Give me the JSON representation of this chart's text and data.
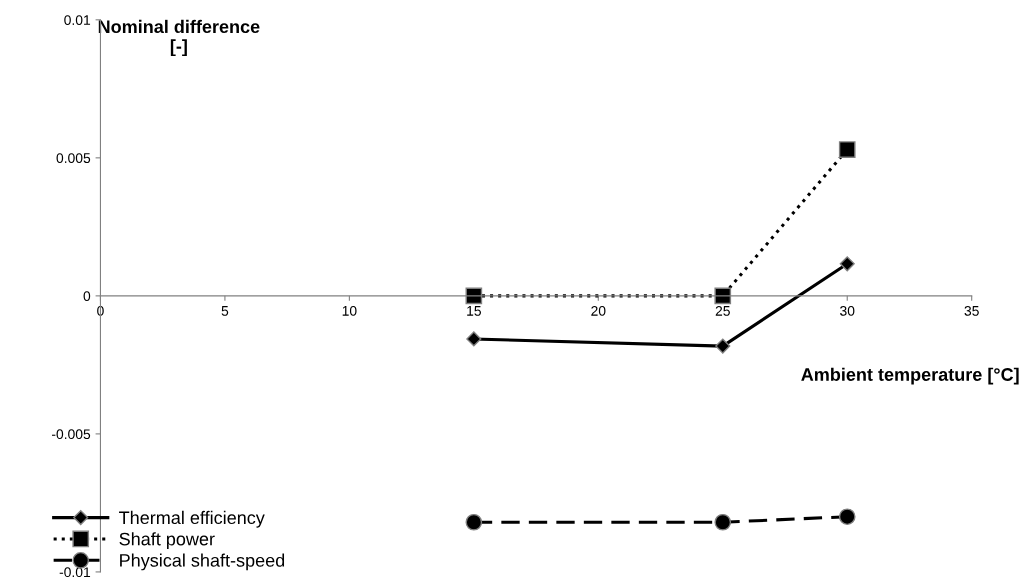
{
  "chart_data": {
    "type": "line",
    "xlabel": "Ambient temperature [°C]",
    "ylabel": "Nominal difference\n[-]",
    "xlim": [
      0,
      35
    ],
    "xticks": [
      0,
      5,
      10,
      15,
      20,
      25,
      30,
      35
    ],
    "ylim": [
      -0.01,
      0.01
    ],
    "yticks": [
      -0.01,
      -0.005,
      0,
      0.005,
      0.01
    ],
    "grid": false,
    "legend": "bottom left",
    "series": [
      {
        "name": "Thermal efficiency",
        "color": "#000000",
        "marker": "diamond",
        "line_style": "solid",
        "x": [
          15,
          25,
          30
        ],
        "values": [
          -0.00156,
          -0.00182,
          0.00116
        ]
      },
      {
        "name": "Shaft power",
        "color": "#000000",
        "marker": "square",
        "line_style": "dotted",
        "x": [
          15,
          25,
          30
        ],
        "values": [
          0,
          0,
          0.0053
        ]
      },
      {
        "name": "Physical shaft-speed",
        "color": "#000000",
        "marker": "circle",
        "line_style": "dashed",
        "x": [
          15,
          25,
          30
        ],
        "values": [
          -0.0082,
          -0.0082,
          -0.008
        ]
      }
    ]
  }
}
